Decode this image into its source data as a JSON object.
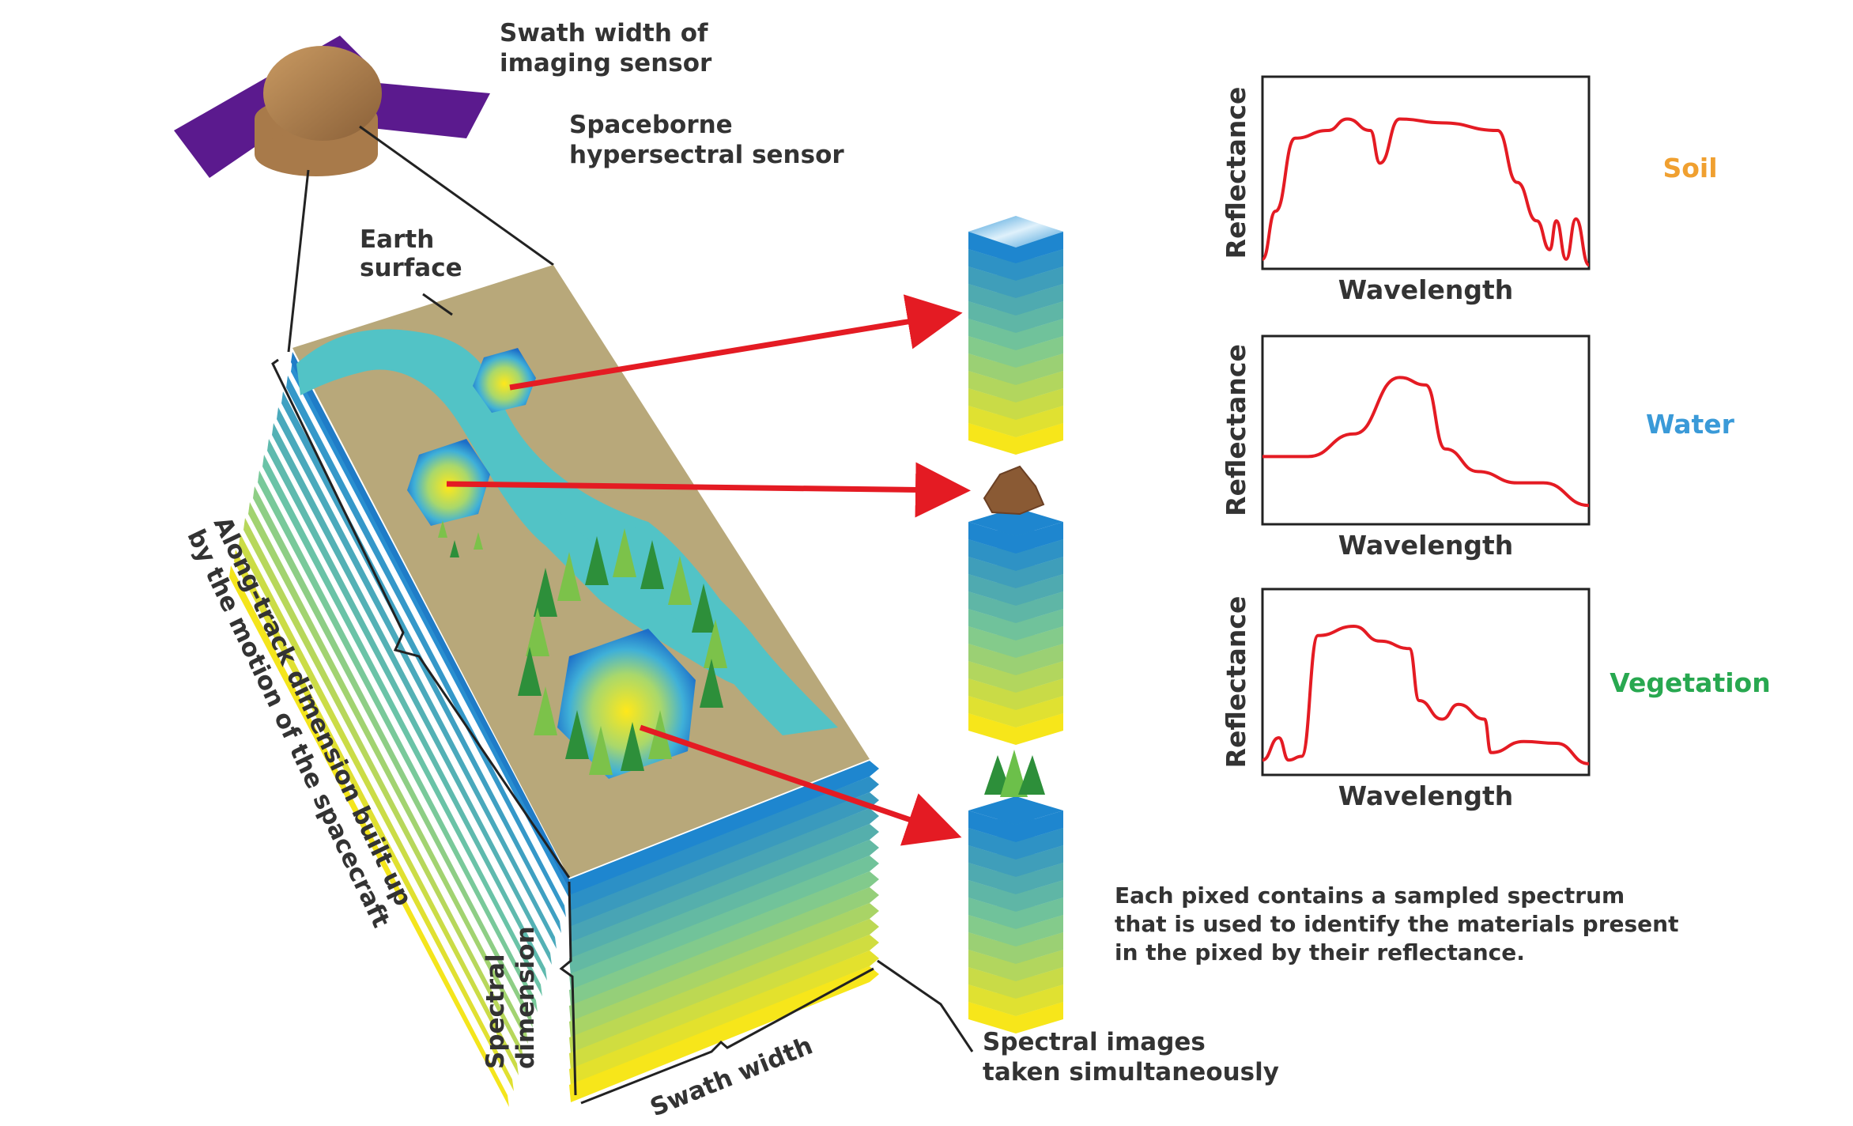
{
  "labels": {
    "swath_width_sensor": [
      "Swath width of",
      "imaging sensor"
    ],
    "spaceborne_sensor": [
      "Spaceborne",
      "hypersectral sensor"
    ],
    "earth_surface": [
      "Earth",
      "surface"
    ],
    "along_track": [
      "Along-track dimension built up",
      "by the motion of the spacecraft"
    ],
    "spectral_dimension": [
      "Spectral",
      "dimension"
    ],
    "swath_width": "Swath width",
    "spectral_images": [
      "Spectral images",
      "taken simultaneously"
    ],
    "pixel_note": [
      "Each pixed contains a sampled spectrum",
      "that is used to identify the materials present",
      "in the pixed by their reflectance."
    ]
  },
  "charts": [
    {
      "material": "Soil",
      "material_color": "#f0a030",
      "ylabel": "Reflectance",
      "xlabel": "Wavelength",
      "spectrum": [
        [
          0,
          0.05
        ],
        [
          0.04,
          0.3
        ],
        [
          0.1,
          0.68
        ],
        [
          0.2,
          0.72
        ],
        [
          0.26,
          0.78
        ],
        [
          0.33,
          0.72
        ],
        [
          0.36,
          0.55
        ],
        [
          0.42,
          0.78
        ],
        [
          0.55,
          0.76
        ],
        [
          0.72,
          0.72
        ],
        [
          0.78,
          0.45
        ],
        [
          0.84,
          0.25
        ],
        [
          0.88,
          0.1
        ],
        [
          0.9,
          0.25
        ],
        [
          0.93,
          0.05
        ],
        [
          0.96,
          0.26
        ],
        [
          1,
          0.02
        ]
      ]
    },
    {
      "material": "Water",
      "material_color": "#3a9ad8",
      "ylabel": "Reflectance",
      "xlabel": "Wavelength",
      "spectrum": [
        [
          0,
          0.36
        ],
        [
          0.14,
          0.36
        ],
        [
          0.28,
          0.48
        ],
        [
          0.42,
          0.78
        ],
        [
          0.5,
          0.74
        ],
        [
          0.56,
          0.4
        ],
        [
          0.66,
          0.28
        ],
        [
          0.78,
          0.22
        ],
        [
          0.86,
          0.22
        ],
        [
          1,
          0.1
        ]
      ]
    },
    {
      "material": "Vegetation",
      "material_color": "#28a850",
      "ylabel": "Reflectance",
      "xlabel": "Wavelength",
      "spectrum": [
        [
          0,
          0.08
        ],
        [
          0.05,
          0.2
        ],
        [
          0.08,
          0.08
        ],
        [
          0.12,
          0.1
        ],
        [
          0.17,
          0.75
        ],
        [
          0.28,
          0.8
        ],
        [
          0.36,
          0.72
        ],
        [
          0.45,
          0.68
        ],
        [
          0.48,
          0.4
        ],
        [
          0.55,
          0.3
        ],
        [
          0.6,
          0.38
        ],
        [
          0.68,
          0.3
        ],
        [
          0.7,
          0.12
        ],
        [
          0.8,
          0.18
        ],
        [
          0.9,
          0.17
        ],
        [
          1,
          0.06
        ]
      ]
    }
  ]
}
